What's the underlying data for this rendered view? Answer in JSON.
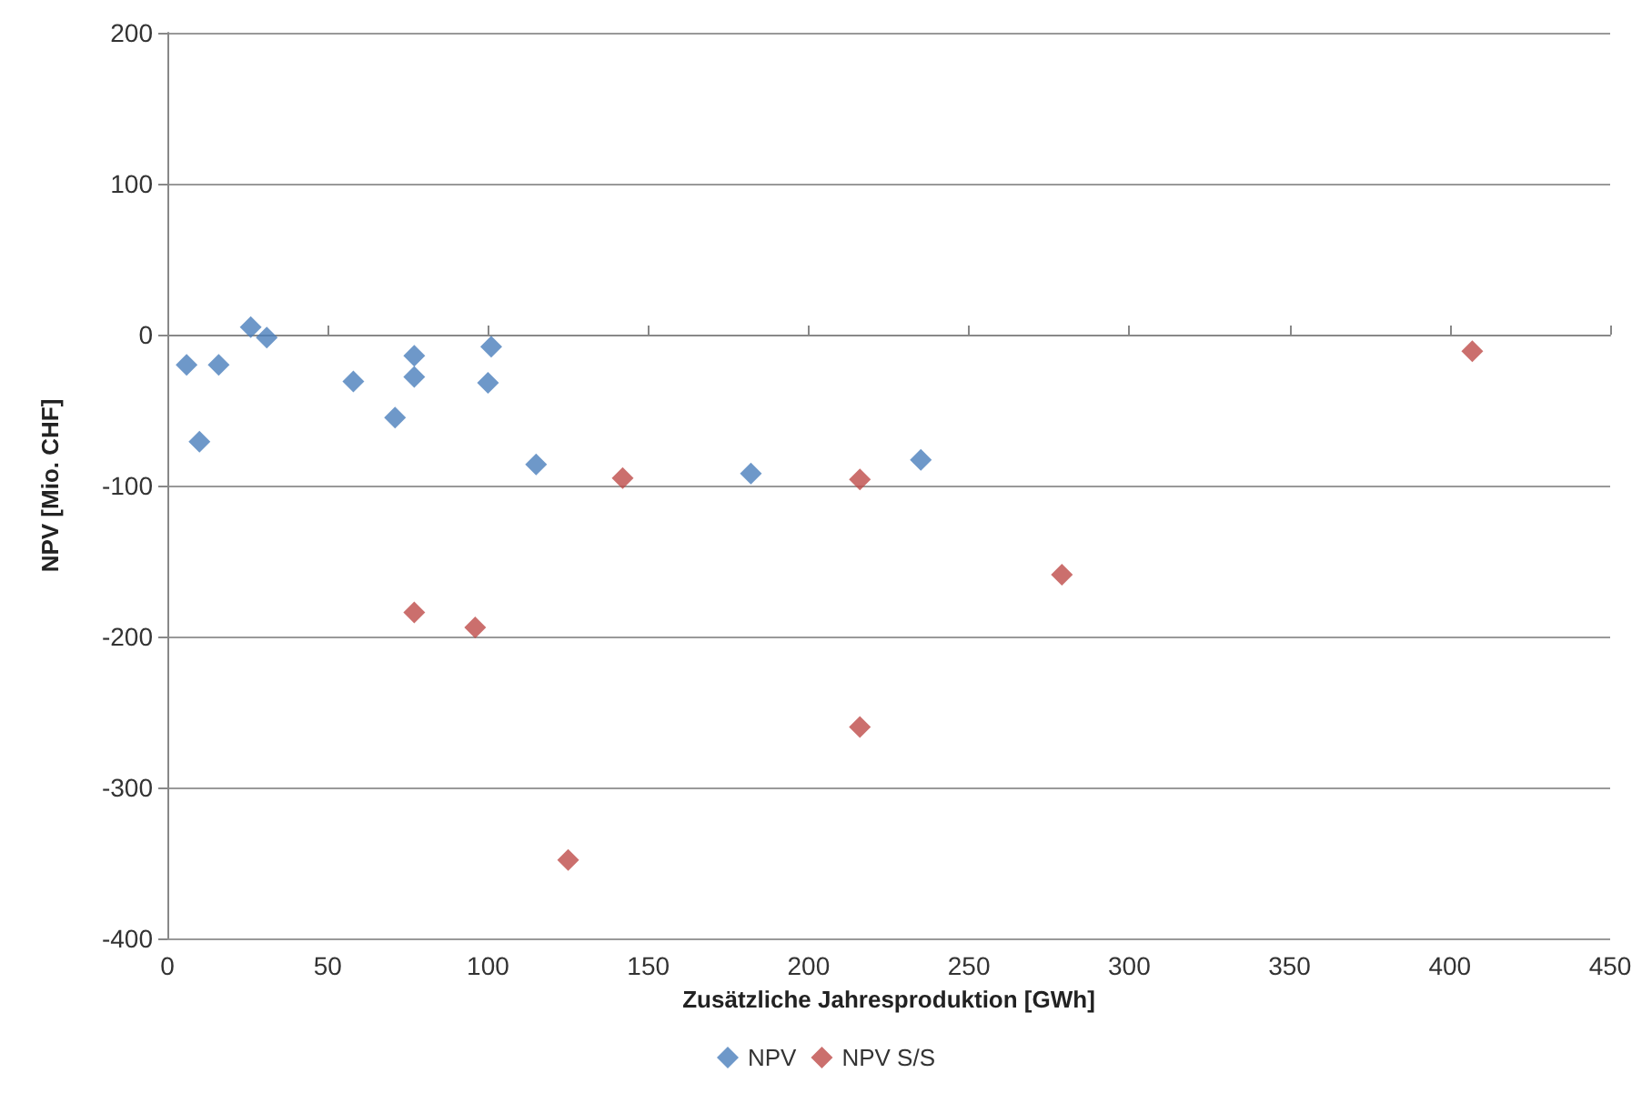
{
  "chart_data": {
    "type": "scatter",
    "xlabel": "Zusätzliche Jahresproduktion [GWh]",
    "ylabel": "NPV [Mio. CHF]",
    "xlim": [
      0,
      450
    ],
    "xticks": [
      0,
      50,
      100,
      150,
      200,
      250,
      300,
      350,
      400,
      450
    ],
    "ylim": [
      -400,
      200
    ],
    "yticks": [
      -400,
      -300,
      -200,
      -100,
      0,
      100,
      200
    ],
    "grid": "y",
    "legend": "bottom",
    "marker": "diamond",
    "series": [
      {
        "name": "NPV",
        "color": "#4a7ebb",
        "x": [
          6,
          10,
          16,
          26,
          31,
          58,
          71,
          77,
          77,
          101,
          100,
          115,
          182,
          235
        ],
        "values": [
          -20,
          -71,
          -20,
          5,
          -2,
          -31,
          -55,
          -14,
          -28,
          -8,
          -32,
          -86,
          -92,
          -83
        ]
      },
      {
        "name": "NPV S/S",
        "color": "#be4b48",
        "x": [
          77,
          96,
          125,
          142,
          216,
          216,
          279,
          407
        ],
        "values": [
          -184,
          -194,
          -348,
          -95,
          -96,
          -260,
          -159,
          -11
        ]
      }
    ]
  }
}
